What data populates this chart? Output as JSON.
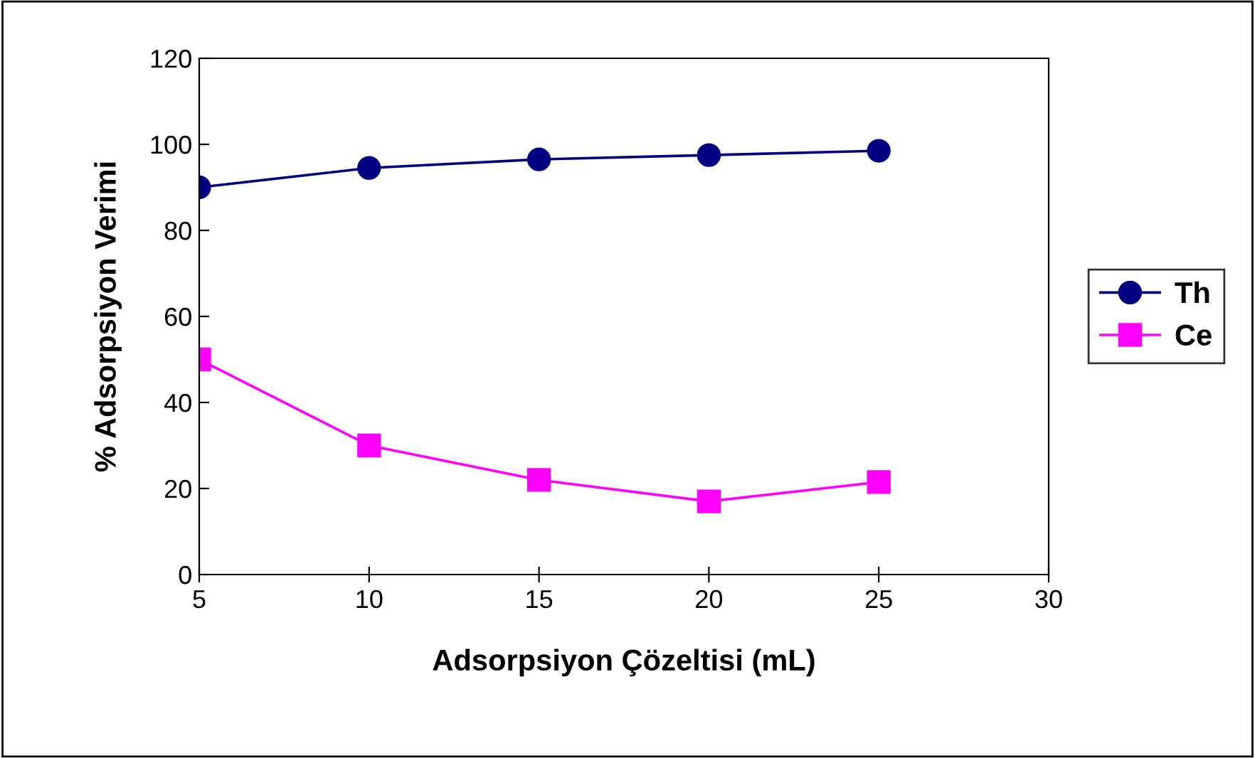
{
  "chart_data": {
    "type": "line",
    "xlabel": "Adsorpsiyon Çözeltisi (mL)",
    "ylabel": "% Adsorpsiyon Verimi",
    "x": [
      5,
      10,
      15,
      20,
      25
    ],
    "series": [
      {
        "name": "Th",
        "color": "#000080",
        "marker": "circle",
        "values": [
          90,
          94.5,
          96.5,
          97.5,
          98.5
        ]
      },
      {
        "name": "Ce",
        "color": "#ff00ff",
        "marker": "square",
        "values": [
          50,
          30,
          22,
          17,
          21.5
        ]
      }
    ],
    "xlim": [
      5,
      30
    ],
    "xticks": [
      5,
      10,
      15,
      20,
      25,
      30
    ],
    "ylim": [
      0,
      120
    ],
    "yticks": [
      0,
      20,
      40,
      60,
      80,
      100,
      120
    ],
    "grid": false,
    "legend": "right",
    "line_style": "solid"
  }
}
